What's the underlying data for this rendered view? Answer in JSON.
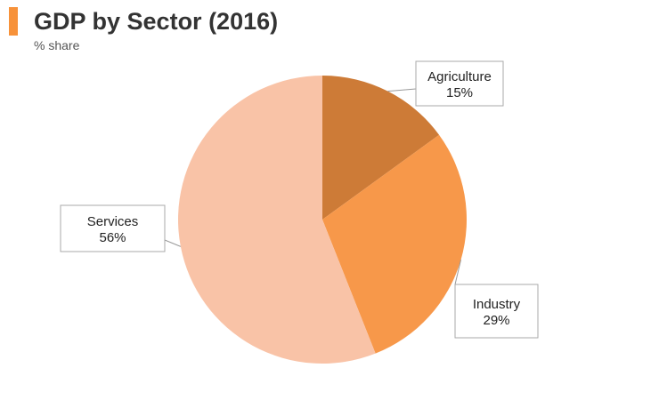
{
  "header": {
    "title": "GDP by Sector (2016)",
    "subtitle": "% share",
    "accent_color": "#f7923a"
  },
  "chart_data": {
    "type": "pie",
    "title": "GDP by Sector (2016)",
    "subtitle": "% share",
    "slices": [
      {
        "label": "Agriculture",
        "value": 15,
        "display": "15%",
        "color": "#cd7b37"
      },
      {
        "label": "Industry",
        "value": 29,
        "display": "29%",
        "color": "#f7984a"
      },
      {
        "label": "Services",
        "value": 56,
        "display": "56%",
        "color": "#f9c3a7"
      }
    ],
    "start_angle": "12 o'clock",
    "direction": "clockwise",
    "data_labels": "callout boxes outside the pie"
  }
}
